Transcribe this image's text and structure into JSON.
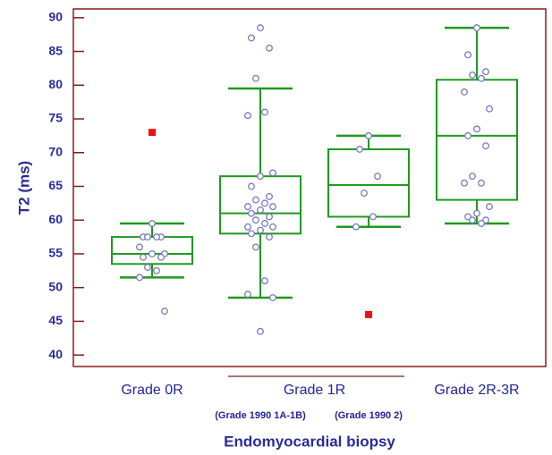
{
  "chart_data": {
    "type": "box",
    "y_label": "T2 (ms)",
    "x_label": "Endomyocardial biopsy",
    "ylim": [
      38.3,
      91.3
    ],
    "yticks": [
      40,
      45,
      50,
      55,
      60,
      65,
      70,
      75,
      80,
      85,
      90
    ],
    "box_color": "#1f9a1f",
    "point_color": "#7a7ac0",
    "outlier_color": "#ee1111",
    "categories": [
      {
        "label": "Grade 0R",
        "boxes": [
          {
            "whisker_low": 51.5,
            "q1": 53.5,
            "median": 55,
            "q3": 57.5,
            "whisker_high": 59.5,
            "points": [
              59.5,
              57.5,
              57.5,
              57.5,
              57.5,
              56,
              55,
              55,
              54.5,
              54.5,
              53,
              52.5,
              51.5,
              46.5
            ],
            "outliers": [
              73
            ]
          }
        ]
      },
      {
        "label": "Grade 1R",
        "boxes": [
          {
            "sublabel": "(Grade 1990 1A-1B)",
            "whisker_low": 48.5,
            "q1": 58,
            "median": 61,
            "q3": 66.5,
            "whisker_high": 79.5,
            "points": [
              88.5,
              87,
              85.5,
              81,
              76,
              75.5,
              67,
              66.5,
              65,
              63.5,
              63,
              62.5,
              62,
              62,
              61.5,
              61,
              60.5,
              60,
              59.5,
              59,
              59,
              58.5,
              58,
              57.5,
              56,
              51,
              49,
              48.5,
              43.5
            ],
            "outliers": []
          },
          {
            "sublabel": "(Grade 1990 2)",
            "whisker_low": 59,
            "q1": 60.5,
            "median": 65.2,
            "q3": 70.5,
            "whisker_high": 72.5,
            "points": [
              72.5,
              70.5,
              66.5,
              64,
              60.5,
              59
            ],
            "outliers": [
              46
            ]
          }
        ]
      },
      {
        "label": "Grade 2R-3R",
        "boxes": [
          {
            "whisker_low": 59.5,
            "q1": 63,
            "median": 72.5,
            "q3": 80.8,
            "whisker_high": 88.5,
            "points": [
              88.5,
              84.5,
              82,
              81.5,
              81,
              79,
              76.5,
              73.5,
              72.5,
              71,
              66.5,
              65.5,
              65.5,
              62,
              61,
              60.5,
              60,
              60,
              59.5
            ],
            "outliers": []
          }
        ]
      }
    ]
  }
}
